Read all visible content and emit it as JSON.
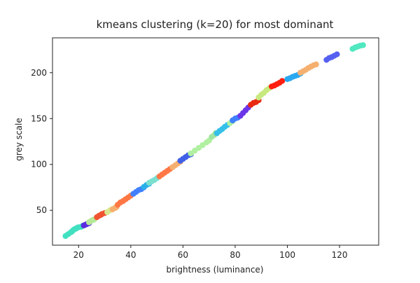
{
  "chart_data": {
    "type": "scatter",
    "title": "kmeans clustering (k=20) for most dominant",
    "xlabel": "brightness (luminance)",
    "ylabel": "grey scale",
    "xlim": [
      10,
      135
    ],
    "ylim": [
      12,
      238
    ],
    "xticks": [
      20,
      40,
      60,
      80,
      100,
      120
    ],
    "yticks": [
      50,
      100,
      150,
      200
    ],
    "grid": false,
    "legend": "none",
    "series": [
      {
        "color": "#40e0c0",
        "points": [
          [
            15,
            22
          ],
          [
            16,
            24
          ],
          [
            17,
            26
          ],
          [
            17.5,
            27
          ],
          [
            18,
            28.5
          ],
          [
            18.5,
            29.5
          ],
          [
            19,
            30
          ],
          [
            19.5,
            31
          ],
          [
            20,
            31.5
          ],
          [
            21,
            32
          ],
          [
            21.5,
            33
          ],
          [
            22,
            33.5
          ]
        ]
      },
      {
        "color": "#5a2be0",
        "points": [
          [
            22,
            33.5
          ],
          [
            22.8,
            34.5
          ],
          [
            23.5,
            35.5
          ],
          [
            24,
            36
          ]
        ]
      },
      {
        "color": "#b8e89a",
        "points": [
          [
            24,
            37
          ],
          [
            24.8,
            38.5
          ],
          [
            25.5,
            39.5
          ],
          [
            26,
            40
          ]
        ]
      },
      {
        "color": "#f05530",
        "points": [
          [
            27,
            42.5
          ],
          [
            27.8,
            44
          ],
          [
            28.5,
            45
          ],
          [
            29,
            46
          ],
          [
            30,
            47
          ]
        ]
      },
      {
        "color": "#d8e890",
        "points": [
          [
            31,
            48
          ],
          [
            32,
            50
          ],
          [
            33,
            51.5
          ],
          [
            34,
            53
          ],
          [
            34.5,
            54
          ]
        ]
      },
      {
        "color": "#f5b070",
        "points": [
          [
            33,
            51
          ],
          [
            34,
            52.5
          ],
          [
            34.5,
            53.5
          ]
        ]
      },
      {
        "color": "#ff7744",
        "points": [
          [
            35,
            56
          ],
          [
            36,
            58.5
          ],
          [
            37,
            60
          ],
          [
            38,
            62
          ],
          [
            39,
            64
          ],
          [
            40,
            66
          ]
        ]
      },
      {
        "color": "#4080ff",
        "points": [
          [
            41,
            68
          ],
          [
            42,
            70
          ],
          [
            43,
            72
          ],
          [
            44,
            73
          ],
          [
            45,
            75
          ]
        ]
      },
      {
        "color": "#2ab0e8",
        "points": [
          [
            45,
            75.5
          ],
          [
            46,
            77.5
          ],
          [
            47,
            79
          ]
        ]
      },
      {
        "color": "#7ce0d0",
        "points": [
          [
            47,
            80
          ],
          [
            48,
            81.5
          ],
          [
            49,
            83
          ],
          [
            50,
            85
          ]
        ]
      },
      {
        "color": "#ff7744",
        "points": [
          [
            51,
            87
          ],
          [
            52,
            89
          ],
          [
            53,
            91
          ],
          [
            54,
            93
          ],
          [
            55,
            95
          ],
          [
            56,
            97
          ]
        ]
      },
      {
        "color": "#f5b070",
        "points": [
          [
            56,
            97
          ],
          [
            57,
            99
          ],
          [
            58,
            101
          ],
          [
            59,
            103
          ]
        ]
      },
      {
        "color": "#4060e8",
        "points": [
          [
            59,
            104
          ],
          [
            60,
            106
          ],
          [
            61,
            108
          ],
          [
            62,
            110
          ],
          [
            63,
            111
          ]
        ]
      },
      {
        "color": "#b0f0a0",
        "points": [
          [
            63,
            112
          ],
          [
            64.5,
            115
          ],
          [
            66,
            118
          ],
          [
            67.5,
            121
          ],
          [
            69,
            124
          ],
          [
            70,
            126
          ]
        ]
      },
      {
        "color": "#9fe4a0",
        "points": [
          [
            71,
            130
          ],
          [
            72,
            132
          ],
          [
            72.5,
            134
          ]
        ]
      },
      {
        "color": "#34c0e8",
        "points": [
          [
            73,
            134
          ],
          [
            74,
            136.5
          ],
          [
            75,
            138.5
          ],
          [
            76,
            141
          ],
          [
            77,
            143
          ]
        ]
      },
      {
        "color": "#b0f0a0",
        "points": [
          [
            78,
            145
          ],
          [
            79,
            147
          ]
        ]
      },
      {
        "color": "#4080ff",
        "points": [
          [
            79,
            148
          ],
          [
            80,
            150
          ],
          [
            81,
            151
          ]
        ]
      },
      {
        "color": "#6b35e8",
        "points": [
          [
            82,
            153
          ],
          [
            83,
            156
          ],
          [
            84,
            159
          ],
          [
            85,
            162
          ]
        ]
      },
      {
        "color": "#e82a10",
        "points": [
          [
            86,
            165
          ],
          [
            87,
            167
          ],
          [
            88,
            168
          ],
          [
            89,
            170
          ]
        ]
      },
      {
        "color": "#c8e880",
        "points": [
          [
            89,
            173
          ],
          [
            90,
            176
          ],
          [
            91,
            178
          ],
          [
            92,
            181
          ],
          [
            93,
            183
          ]
        ]
      },
      {
        "color": "#ff1f0f",
        "points": [
          [
            94,
            185
          ],
          [
            95,
            186
          ],
          [
            96,
            187.5
          ],
          [
            97,
            189
          ],
          [
            98,
            191
          ]
        ]
      },
      {
        "color": "#2aa8f0",
        "points": [
          [
            100,
            193
          ],
          [
            101,
            194
          ],
          [
            102,
            195.5
          ],
          [
            103,
            196.5
          ],
          [
            104,
            197.5
          ],
          [
            105,
            199
          ]
        ]
      },
      {
        "color": "#f5b070",
        "points": [
          [
            105,
            200
          ],
          [
            106,
            201.5
          ],
          [
            107,
            203
          ],
          [
            108,
            205
          ],
          [
            109,
            206.5
          ],
          [
            110,
            208
          ],
          [
            111,
            209
          ]
        ]
      },
      {
        "color": "#5560f0",
        "points": [
          [
            115,
            214
          ],
          [
            116,
            216
          ],
          [
            117,
            217
          ],
          [
            118,
            218.5
          ],
          [
            119,
            220
          ]
        ]
      },
      {
        "color": "#50e8c0",
        "points": [
          [
            125,
            226
          ],
          [
            126,
            227.5
          ],
          [
            127,
            228.5
          ],
          [
            128,
            229.5
          ],
          [
            129,
            230
          ]
        ]
      }
    ]
  }
}
